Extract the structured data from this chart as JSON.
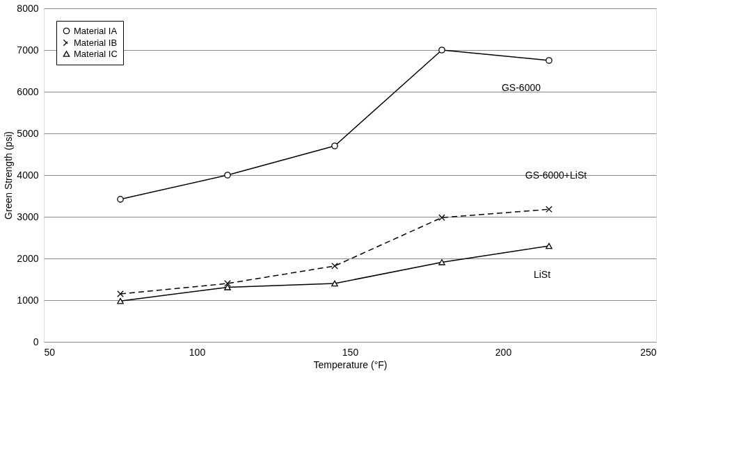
{
  "chart_data": {
    "type": "line",
    "xlabel": "Temperature (°F)",
    "ylabel": "Green Strength (psi)",
    "x": [
      75,
      110,
      145,
      180,
      215
    ],
    "series": [
      {
        "name": "Material IA",
        "color": "#000000",
        "marker": "circle",
        "line_style": "solid",
        "values": [
          3420,
          4000,
          4700,
          7000,
          6750
        ]
      },
      {
        "name": "Material IB",
        "color": "#000000",
        "marker": "cross",
        "line_style": "dashed",
        "values": [
          1150,
          1400,
          1820,
          2980,
          3180
        ]
      },
      {
        "name": "Material IC",
        "color": "#000000",
        "marker": "triangle",
        "line_style": "solid",
        "values": [
          980,
          1310,
          1400,
          1910,
          2300
        ]
      }
    ],
    "xlim": [
      50,
      250
    ],
    "xticks": [
      50,
      100,
      150,
      200,
      250
    ],
    "ylim": [
      0,
      8000
    ],
    "yticks": [
      0,
      1000,
      2000,
      3000,
      4000,
      5000,
      6000,
      7000,
      8000
    ],
    "grid": "y",
    "legend": "top left",
    "annotations": [
      "GS-6000",
      "GS-6000+LiSt",
      "LiSt"
    ]
  }
}
